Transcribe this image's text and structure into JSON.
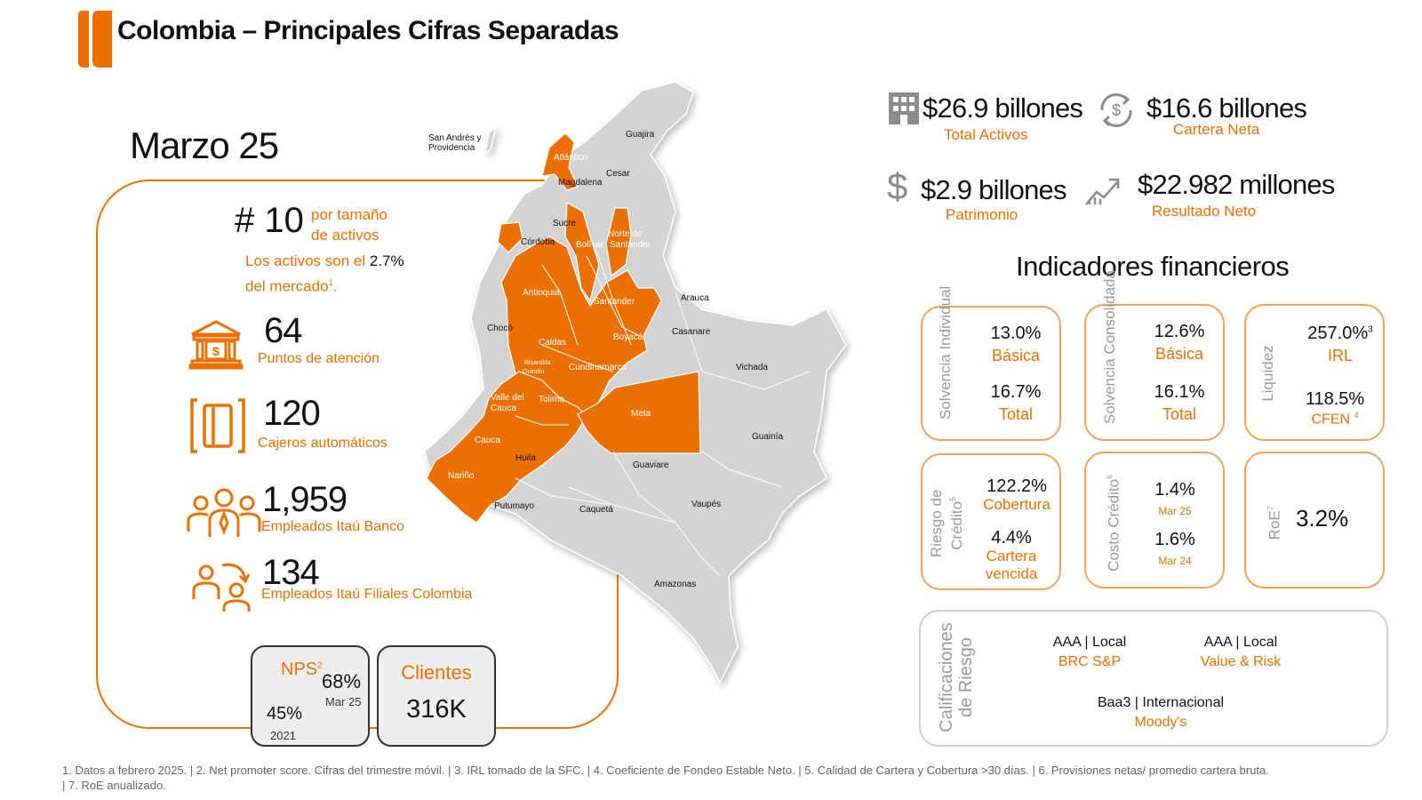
{
  "header": {
    "title": "Colombia – Principales Cifras Separadas"
  },
  "period": "Marzo 25",
  "ranking": {
    "value": "# 10",
    "desc_line1": "por tamaño",
    "desc_line2": "de activos",
    "share_prefix": "Los activos son el ",
    "share_value": "2.7%",
    "share_suffix_line2": "del mercado",
    "share_note": "1",
    "share_end": "."
  },
  "kpis": [
    {
      "value": "64",
      "label": "Puntos de atención",
      "icon": "bank-building-icon"
    },
    {
      "value": "120",
      "label": "Cajeros automáticos",
      "icon": "atm-card-icon"
    },
    {
      "value": "1,959",
      "label": "Empleados  Itaú Banco",
      "icon": "employees-group-icon"
    },
    {
      "value": "134",
      "label": "Empleados  Itaú Filiales Colombia",
      "icon": "employees-transfer-icon"
    }
  ],
  "nps": {
    "title": "NPS",
    "note": "2",
    "current_value": "68%",
    "current_period": "Mar 25",
    "prev_value": "45%",
    "prev_period": "2021"
  },
  "clients": {
    "title": "Clientes",
    "value": "316K"
  },
  "map": {
    "san_andres": "San Andrés y Providencia",
    "departments": [
      "Guajira",
      "Atlántico",
      "Magdalena",
      "Cesar",
      "Sucre",
      "Bolívar",
      "Norte de Santander",
      "Córdoba",
      "Antioquia",
      "Santander",
      "Arauca",
      "Chocó",
      "Caldas",
      "Risaralda",
      "Quindío",
      "Boyacá",
      "Casanare",
      "Cundinamarca",
      "Vichada",
      "Valle del Cauca",
      "Tolima",
      "Meta",
      "Guainía",
      "Cauca",
      "Huila",
      "Guaviare",
      "Nariño",
      "Putumayo",
      "Caquetá",
      "Vaupés",
      "Amazonas"
    ],
    "highlight_color": "#ec7000",
    "base_color": "#d3d3d3"
  },
  "figures": [
    {
      "value": "$26.9 billones",
      "label": "Total Activos",
      "icon": "building-icon"
    },
    {
      "value": "$16.6 billones",
      "label": "Cartera Neta",
      "icon": "dollar-cycle-icon"
    },
    {
      "value": "$2.9 billones",
      "label": "Patrimonio",
      "icon": "dollar-sign-icon"
    },
    {
      "value": "$22.982 millones",
      "label": "Resultado Neto",
      "icon": "trend-up-icon"
    }
  ],
  "indicators": {
    "title": "Indicadores financieros",
    "solvencia_individual": {
      "side": "Solvencia Individual",
      "v1": "13.0%",
      "l1": "Básica",
      "v2": "16.7%",
      "l2": "Total"
    },
    "solvencia_consolidada": {
      "side": "Solvencia Consolidada",
      "v1": "12.6%",
      "l1": "Básica",
      "v2": "16.1%",
      "l2": "Total"
    },
    "liquidez": {
      "side": "Liquidez",
      "v1": "257.0%",
      "n1": "3",
      "l1": "IRL",
      "v2": "118.5%",
      "l2": "CFEN",
      "n2": "4"
    },
    "riesgo_credito": {
      "side1": "Riesgo de",
      "side2": "Crédito",
      "note": "5",
      "v1": "122.2%",
      "l1": "Cobertura",
      "v2": "4.4%",
      "l2a": "Cartera",
      "l2b": "vencida"
    },
    "costo_credito": {
      "side": "Costo Crédito",
      "note": "6",
      "v1": "1.4%",
      "p1": "Mar 25",
      "v2": "1.6%",
      "p2": "Mar 24"
    },
    "roe": {
      "side": "RoE",
      "note": "7",
      "value": "3.2%"
    }
  },
  "ratings": {
    "side1": "Calificaciones",
    "side2": "de Riesgo",
    "items": [
      {
        "value": "AAA | Local",
        "agency": "BRC S&P"
      },
      {
        "value": "AAA | Local",
        "agency": "Value & Risk"
      },
      {
        "value": "Baa3 | Internacional",
        "agency": "Moody's"
      }
    ]
  },
  "footnotes": {
    "line1": "1. Datos a febrero  2025. | 2. Net promoter score. Cifras del trimestre móvil. | 3. IRL tomado de la SFC. | 4.  Coeficiente de Fondeo Estable Neto. | 5. Calidad de Cartera y Cobertura >30 días. | 6. Provisiones netas/ promedio cartera bruta.",
    "line2": "| 7. RoE anualizado."
  }
}
